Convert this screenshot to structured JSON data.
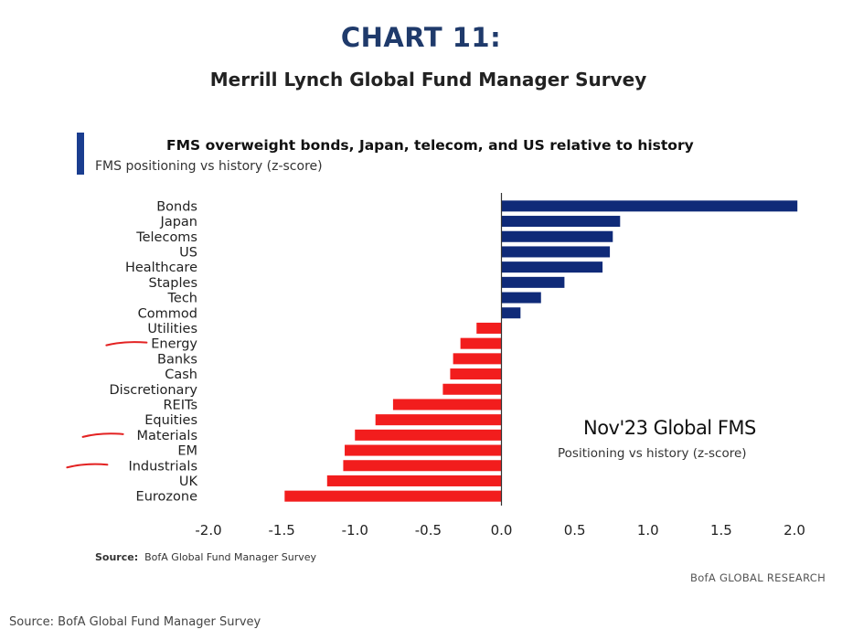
{
  "header": {
    "title": "CHART 11:",
    "subtitle": "Merrill Lynch Global Fund Manager Survey"
  },
  "chart_data": {
    "type": "bar",
    "orientation": "horizontal",
    "title": "FMS overweight bonds, Japan, telecom, and US relative to history",
    "subtitle": "FMS positioning vs history (z-score)",
    "categories": [
      "Bonds",
      "Japan",
      "Telecoms",
      "US",
      "Healthcare",
      "Staples",
      "Tech",
      "Commod",
      "Utilities",
      "Energy",
      "Banks",
      "Cash",
      "Discretionary",
      "REITs",
      "Equities",
      "Materials",
      "EM",
      "Industrials",
      "UK",
      "Eurozone"
    ],
    "values": [
      2.02,
      0.81,
      0.76,
      0.74,
      0.69,
      0.43,
      0.27,
      0.13,
      -0.17,
      -0.28,
      -0.33,
      -0.35,
      -0.4,
      -0.74,
      -0.86,
      -1.0,
      -1.07,
      -1.08,
      -1.19,
      -1.48
    ],
    "xlim": [
      -2.0,
      2.0
    ],
    "xticks": [
      "-2.0",
      "-1.5",
      "-1.0",
      "-0.5",
      "0.0",
      "0.5",
      "1.0",
      "1.5",
      "2.0"
    ],
    "xtick_values": [
      -2.0,
      -1.5,
      -1.0,
      -0.5,
      0.0,
      0.5,
      1.0,
      1.5,
      2.0
    ],
    "positive_color": "#0f2a78",
    "negative_color": "#f21d1d",
    "annotated_categories": [
      "Energy",
      "Materials",
      "Industrials"
    ],
    "annotation_color": "#e32222",
    "inset_title": "Nov'23 Global FMS",
    "inset_subtitle": "Positioning vs history (z-score)",
    "grid": false
  },
  "footer": {
    "source_label": "Source:",
    "source_text": "BofA Global Fund Manager Survey",
    "brand": "BofA GLOBAL RESEARCH",
    "outer_source": "Source: BofA Global Fund Manager Survey"
  }
}
